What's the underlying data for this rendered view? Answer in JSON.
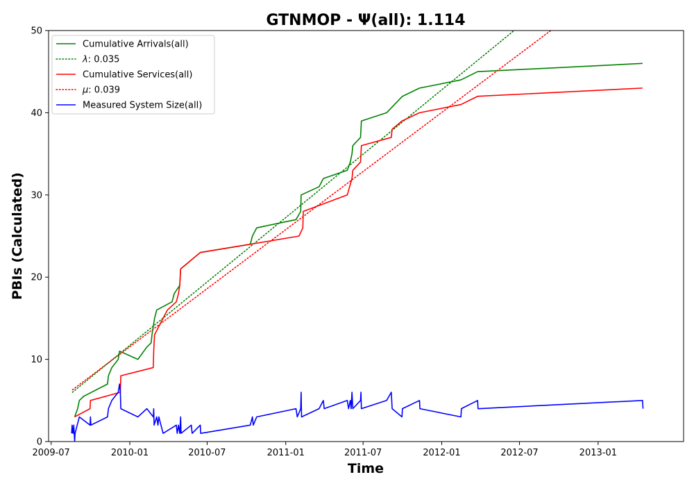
{
  "chart_data": {
    "type": "line",
    "title": "GTNMOP -  Ψ(all): 1.114",
    "xlabel": "Time",
    "ylabel": "PBIs (Calculated)",
    "xlim": [
      "2009-06-25",
      "2013-07-20"
    ],
    "ylim": [
      0,
      50
    ],
    "x_ticks": [
      {
        "date": "2009-07-01",
        "label": "2009-07"
      },
      {
        "date": "2010-01-01",
        "label": "2010-01"
      },
      {
        "date": "2010-07-01",
        "label": "2010-07"
      },
      {
        "date": "2011-01-01",
        "label": "2011-01"
      },
      {
        "date": "2011-07-01",
        "label": "2011-07"
      },
      {
        "date": "2012-01-01",
        "label": "2012-01"
      },
      {
        "date": "2012-07-01",
        "label": "2012-07"
      },
      {
        "date": "2013-01-01",
        "label": "2013-01"
      }
    ],
    "y_ticks": [
      0,
      10,
      20,
      30,
      40,
      50
    ],
    "legend_position": "upper-left",
    "series": [
      {
        "name": "Cumulative Arrivals(all)",
        "color": "#008000",
        "style": "solid",
        "points": [
          [
            "2009-08-25",
            3
          ],
          [
            "2009-09-01",
            4
          ],
          [
            "2009-09-05",
            5
          ],
          [
            "2009-09-15",
            5.5
          ],
          [
            "2009-11-10",
            7
          ],
          [
            "2009-11-12",
            8
          ],
          [
            "2009-11-20",
            9
          ],
          [
            "2009-12-05",
            10
          ],
          [
            "2009-12-08",
            11
          ],
          [
            "2010-01-20",
            10
          ],
          [
            "2010-02-10",
            11.5
          ],
          [
            "2010-02-20",
            12
          ],
          [
            "2010-02-22",
            13
          ],
          [
            "2010-02-28",
            15
          ],
          [
            "2010-03-05",
            16
          ],
          [
            "2010-04-10",
            17
          ],
          [
            "2010-04-15",
            18
          ],
          [
            "2010-04-28",
            19
          ],
          [
            "2010-04-30",
            21
          ],
          [
            "2010-06-15",
            23
          ],
          [
            "2010-10-10",
            24
          ],
          [
            "2010-10-15",
            25
          ],
          [
            "2010-10-25",
            26
          ],
          [
            "2011-01-25",
            27
          ],
          [
            "2011-02-05",
            28
          ],
          [
            "2011-02-06",
            30
          ],
          [
            "2011-03-20",
            31
          ],
          [
            "2011-03-30",
            32
          ],
          [
            "2011-05-25",
            33
          ],
          [
            "2011-06-01",
            34
          ],
          [
            "2011-06-05",
            35
          ],
          [
            "2011-06-07",
            36
          ],
          [
            "2011-06-25",
            37
          ],
          [
            "2011-06-27",
            39
          ],
          [
            "2011-08-25",
            40
          ],
          [
            "2011-10-01",
            42
          ],
          [
            "2011-11-10",
            43
          ],
          [
            "2012-02-15",
            44
          ],
          [
            "2012-03-25",
            45
          ],
          [
            "2013-04-15",
            46
          ]
        ]
      },
      {
        "name": "λ: 0.035",
        "color": "#008000",
        "style": "dotted",
        "points": [
          [
            "2009-08-20",
            6
          ],
          [
            "2012-06-30",
            50.5
          ]
        ]
      },
      {
        "name": "Cumulative Services(all)",
        "color": "#ff0000",
        "style": "solid",
        "points": [
          [
            "2009-08-25",
            3
          ],
          [
            "2009-09-30",
            4
          ],
          [
            "2009-10-01",
            5
          ],
          [
            "2009-12-10",
            6
          ],
          [
            "2009-12-11",
            8
          ],
          [
            "2010-02-25",
            9
          ],
          [
            "2010-02-26",
            11
          ],
          [
            "2010-02-28",
            13
          ],
          [
            "2010-03-10",
            14
          ],
          [
            "2010-03-20",
            15
          ],
          [
            "2010-03-30",
            16
          ],
          [
            "2010-04-20",
            17
          ],
          [
            "2010-04-25",
            18
          ],
          [
            "2010-04-28",
            19
          ],
          [
            "2010-04-30",
            21
          ],
          [
            "2010-06-15",
            23
          ],
          [
            "2010-10-10",
            24
          ],
          [
            "2011-02-01",
            25
          ],
          [
            "2011-02-10",
            26
          ],
          [
            "2011-02-11",
            28
          ],
          [
            "2011-05-25",
            30
          ],
          [
            "2011-06-05",
            32
          ],
          [
            "2011-06-07",
            33
          ],
          [
            "2011-06-25",
            34
          ],
          [
            "2011-06-27",
            36
          ],
          [
            "2011-09-05",
            37
          ],
          [
            "2011-09-07",
            38
          ],
          [
            "2011-09-30",
            39
          ],
          [
            "2011-11-10",
            40
          ],
          [
            "2012-02-15",
            41
          ],
          [
            "2012-03-25",
            42
          ],
          [
            "2013-04-15",
            43
          ]
        ]
      },
      {
        "name": "μ: 0.039",
        "color": "#ff0000",
        "style": "dotted",
        "points": [
          [
            "2009-08-20",
            6.3
          ],
          [
            "2012-09-25",
            50.5
          ]
        ]
      },
      {
        "name": "Measured System Size(all)",
        "color": "#0000ff",
        "style": "solid",
        "points": [
          [
            "2009-08-18",
            1
          ],
          [
            "2009-08-19",
            2
          ],
          [
            "2009-08-21",
            1
          ],
          [
            "2009-08-23",
            2
          ],
          [
            "2009-08-25",
            0
          ],
          [
            "2009-08-26",
            1
          ],
          [
            "2009-09-05",
            3
          ],
          [
            "2009-09-30",
            2
          ],
          [
            "2009-10-01",
            3
          ],
          [
            "2009-10-02",
            2
          ],
          [
            "2009-11-10",
            3
          ],
          [
            "2009-11-12",
            4
          ],
          [
            "2009-11-20",
            5
          ],
          [
            "2009-12-05",
            6
          ],
          [
            "2009-12-08",
            7
          ],
          [
            "2009-12-10",
            6
          ],
          [
            "2009-12-11",
            4
          ],
          [
            "2010-01-20",
            3
          ],
          [
            "2010-02-10",
            4
          ],
          [
            "2010-02-25",
            3
          ],
          [
            "2010-02-26",
            4
          ],
          [
            "2010-02-27",
            2
          ],
          [
            "2010-03-05",
            3
          ],
          [
            "2010-03-08",
            2
          ],
          [
            "2010-03-10",
            3
          ],
          [
            "2010-03-20",
            1
          ],
          [
            "2010-04-20",
            2
          ],
          [
            "2010-04-22",
            1
          ],
          [
            "2010-04-25",
            2
          ],
          [
            "2010-04-28",
            1
          ],
          [
            "2010-04-30",
            3
          ],
          [
            "2010-05-01",
            1
          ],
          [
            "2010-05-25",
            2
          ],
          [
            "2010-05-27",
            1
          ],
          [
            "2010-06-15",
            2
          ],
          [
            "2010-06-16",
            1
          ],
          [
            "2010-10-10",
            2
          ],
          [
            "2010-10-15",
            3
          ],
          [
            "2010-10-17",
            2
          ],
          [
            "2010-10-25",
            3
          ],
          [
            "2011-01-25",
            4
          ],
          [
            "2011-01-28",
            3
          ],
          [
            "2011-02-05",
            4
          ],
          [
            "2011-02-06",
            6
          ],
          [
            "2011-02-07",
            3
          ],
          [
            "2011-03-20",
            4
          ],
          [
            "2011-03-30",
            5
          ],
          [
            "2011-04-01",
            4
          ],
          [
            "2011-05-25",
            5
          ],
          [
            "2011-05-28",
            4
          ],
          [
            "2011-06-01",
            5
          ],
          [
            "2011-06-03",
            4
          ],
          [
            "2011-06-05",
            6
          ],
          [
            "2011-06-07",
            4
          ],
          [
            "2011-06-25",
            5
          ],
          [
            "2011-06-26",
            6
          ],
          [
            "2011-06-27",
            4
          ],
          [
            "2011-08-25",
            5
          ],
          [
            "2011-09-05",
            6
          ],
          [
            "2011-09-07",
            4
          ],
          [
            "2011-09-30",
            3
          ],
          [
            "2011-10-01",
            4
          ],
          [
            "2011-11-10",
            5
          ],
          [
            "2011-11-11",
            4
          ],
          [
            "2012-02-15",
            3
          ],
          [
            "2012-02-16",
            4
          ],
          [
            "2012-03-25",
            5
          ],
          [
            "2012-03-26",
            4
          ],
          [
            "2013-04-15",
            5
          ],
          [
            "2013-04-16",
            4
          ]
        ]
      }
    ]
  }
}
